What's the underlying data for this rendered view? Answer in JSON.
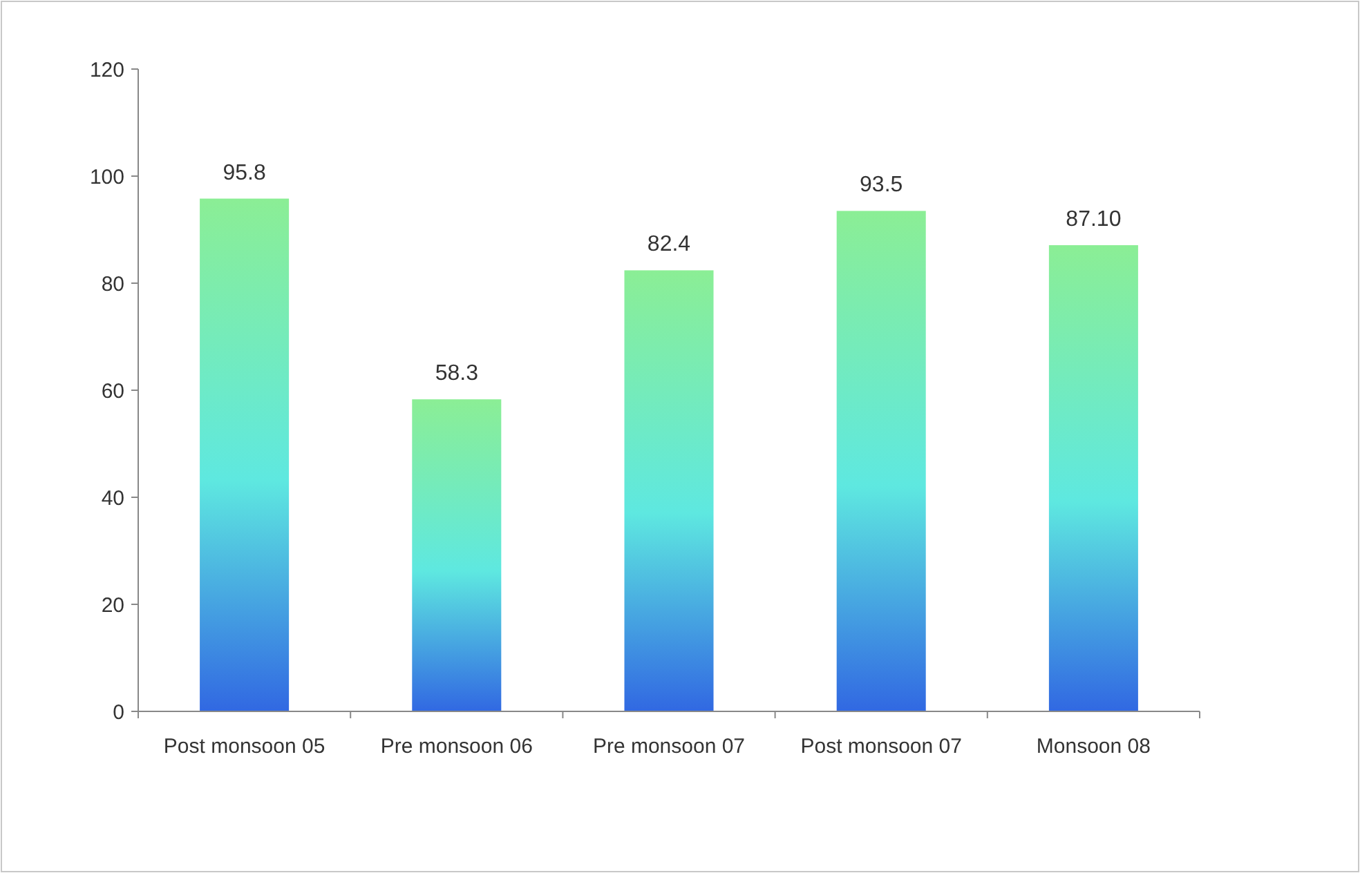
{
  "chart_data": {
    "type": "bar",
    "categories": [
      "Post monsoon 05",
      "Pre monsoon 06",
      "Pre monsoon 07",
      "Post monsoon 07",
      "Monsoon 08"
    ],
    "values": [
      95.8,
      58.3,
      82.4,
      93.5,
      87.1
    ],
    "value_labels": [
      "95.8",
      "58.3",
      "82.4",
      "93.5",
      "87.10"
    ],
    "color": "#5ee8e0",
    "ylim": [
      0,
      120
    ],
    "yticks": [
      0,
      20,
      40,
      60,
      80,
      100,
      120
    ],
    "grid": false
  }
}
